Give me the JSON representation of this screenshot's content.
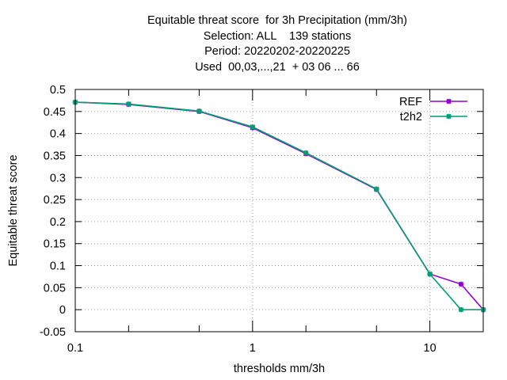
{
  "title_lines": [
    "Equitable threat score  for 3h Precipitation (mm/3h)",
    "Selection: ALL    139 stations",
    "Period: 20220202-20220225",
    "Used  00,03,...,21  + 03 06 ... 66"
  ],
  "chart_data": {
    "type": "line",
    "title": "Equitable threat score  for 3h Precipitation (mm/3h)",
    "xlabel": "thresholds mm/3h",
    "ylabel": "Equitable threat score",
    "x_scale": "log",
    "xlim": [
      0.1,
      20
    ],
    "ylim": [
      -0.05,
      0.5
    ],
    "x_ticks": [
      0.1,
      1,
      10
    ],
    "x_tick_labels": [
      "0.1",
      "1",
      "10"
    ],
    "x_minor_ticks": [
      0.2,
      0.5,
      2,
      5,
      20
    ],
    "y_ticks": [
      -0.05,
      0,
      0.05,
      0.1,
      0.15,
      0.2,
      0.25,
      0.3,
      0.35,
      0.4,
      0.45,
      0.5
    ],
    "y_tick_labels": [
      "-0.05",
      "0",
      "0.05",
      "0.1",
      "0.15",
      "0.2",
      "0.25",
      "0.3",
      "0.35",
      "0.4",
      "0.45",
      "0.5"
    ],
    "grid": true,
    "legend_position": "top-right",
    "x": [
      0.1,
      0.2,
      0.5,
      1,
      2,
      5,
      10,
      15,
      20
    ],
    "series": [
      {
        "name": "REF",
        "color": "#9400d3",
        "values": [
          0.471,
          0.466,
          0.45,
          0.413,
          0.354,
          0.273,
          0.081,
          0.058,
          0.0
        ]
      },
      {
        "name": "t2h2",
        "color": "#009e73",
        "values": [
          0.471,
          0.467,
          0.451,
          0.415,
          0.356,
          0.274,
          0.081,
          0.0,
          0.0
        ]
      }
    ]
  }
}
